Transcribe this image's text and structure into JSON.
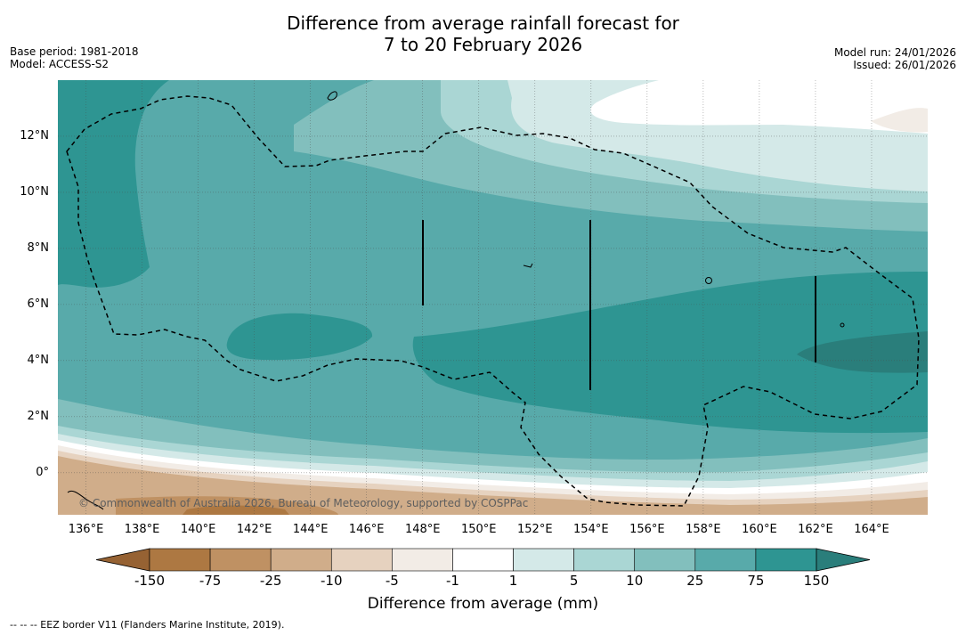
{
  "title": {
    "line1": "Difference from average rainfall forecast for",
    "line2": "7 to 20 February 2026"
  },
  "meta_left": {
    "base_period": "Base period: 1981-2018",
    "model": "Model: ACCESS-S2"
  },
  "meta_right": {
    "model_run": "Model run: 24/01/2026",
    "issued": "Issued: 26/01/2026"
  },
  "axes": {
    "x_ticks": [
      "136°E",
      "138°E",
      "140°E",
      "142°E",
      "144°E",
      "146°E",
      "148°E",
      "150°E",
      "152°E",
      "154°E",
      "156°E",
      "158°E",
      "160°E",
      "162°E",
      "164°E"
    ],
    "y_ticks": [
      "12°N",
      "10°N",
      "8°N",
      "6°N",
      "4°N",
      "2°N",
      "0°"
    ],
    "lon_range": [
      135,
      166
    ],
    "lat_range": [
      -1.5,
      14
    ]
  },
  "copyright": "© Commonwealth of Australia 2026, Bureau of Meteorology, supported by COSPPac",
  "colorbar": {
    "labels": [
      "-150",
      "-75",
      "-25",
      "-10",
      "-5",
      "-1",
      "1",
      "5",
      "10",
      "25",
      "75",
      "150"
    ],
    "colors": [
      "#ad7842",
      "#bf9163",
      "#d0ad8a",
      "#e6d2bf",
      "#f2ece6",
      "#ffffff",
      "#d4e9e8",
      "#aad6d4",
      "#82bfbd",
      "#58aaaa",
      "#2e9592"
    ],
    "under_color": "#966233",
    "over_color": "#2a7e7b",
    "title": "Difference from average (mm)"
  },
  "footnote": "--  --  -- EEZ border V11 (Flanders Marine Institute, 2019).",
  "chart_data": {
    "type": "filled-contour-map",
    "variable": "Rainfall difference from average (mm)",
    "period": "7 to 20 February 2026",
    "levels_mm": [
      -150,
      -75,
      -25,
      -10,
      -5,
      -1,
      1,
      5,
      10,
      25,
      75,
      150
    ],
    "lon_range": [
      135,
      166
    ],
    "lat_range": [
      -1.5,
      14
    ],
    "dominant_anomaly": "wetter than average (5 to 150 mm) across most of the domain, strongest near 2–6°N east of 152°E",
    "drier_than_average_region": "south of about 1°N (-1 to -150 mm)"
  }
}
